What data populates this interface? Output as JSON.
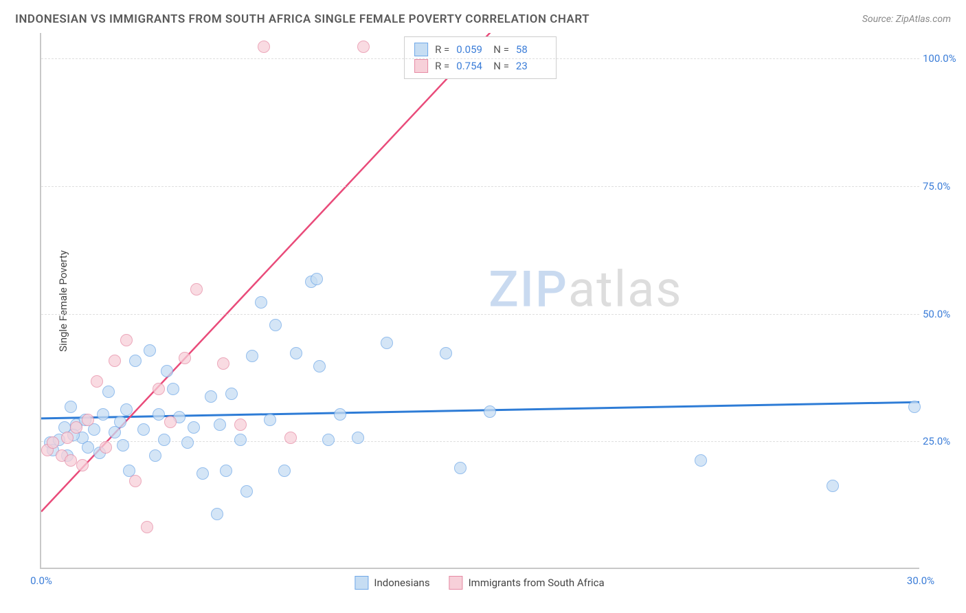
{
  "title": "INDONESIAN VS IMMIGRANTS FROM SOUTH AFRICA SINGLE FEMALE POVERTY CORRELATION CHART",
  "source_label": "Source:",
  "source_name": "ZipAtlas.com",
  "y_axis_title": "Single Female Poverty",
  "watermark": {
    "part1": "ZIP",
    "part2": "atlas"
  },
  "chart": {
    "type": "scatter",
    "xlim": [
      0,
      30
    ],
    "ylim": [
      0,
      105
    ],
    "x_ticks": [
      {
        "value": 0,
        "label": "0.0%"
      },
      {
        "value": 30,
        "label": "30.0%"
      }
    ],
    "y_ticks": [
      {
        "value": 25,
        "label": "25.0%"
      },
      {
        "value": 50,
        "label": "50.0%"
      },
      {
        "value": 75,
        "label": "75.0%"
      },
      {
        "value": 100,
        "label": "100.0%"
      }
    ],
    "grid_color": "#dedede",
    "axis_color": "#c8c8c8",
    "background_color": "#ffffff",
    "marker_radius": 9,
    "series": [
      {
        "name": "Indonesians",
        "fill": "#c6ddf3",
        "stroke": "#6fa8e8",
        "trend": {
          "y_at_x0": 29.3,
          "y_at_xmax": 32.5,
          "line_color": "#2e7cd6",
          "line_width": 3
        },
        "stats": {
          "R": "0.059",
          "N": "58"
        },
        "points": [
          [
            0.3,
            24.5
          ],
          [
            0.4,
            23.0
          ],
          [
            0.6,
            25.0
          ],
          [
            0.8,
            27.5
          ],
          [
            0.9,
            22.0
          ],
          [
            1.0,
            31.5
          ],
          [
            1.2,
            28.0
          ],
          [
            1.4,
            25.5
          ],
          [
            1.5,
            29.0
          ],
          [
            1.6,
            23.5
          ],
          [
            1.8,
            27.0
          ],
          [
            2.0,
            22.5
          ],
          [
            2.1,
            30.0
          ],
          [
            2.3,
            34.5
          ],
          [
            2.5,
            26.5
          ],
          [
            2.7,
            28.5
          ],
          [
            2.8,
            24.0
          ],
          [
            3.0,
            19.0
          ],
          [
            3.2,
            40.5
          ],
          [
            3.5,
            27.0
          ],
          [
            3.7,
            42.5
          ],
          [
            4.0,
            30.0
          ],
          [
            4.2,
            25.0
          ],
          [
            4.3,
            38.5
          ],
          [
            4.5,
            35.0
          ],
          [
            4.7,
            29.5
          ],
          [
            5.0,
            24.5
          ],
          [
            5.2,
            27.5
          ],
          [
            5.5,
            18.5
          ],
          [
            5.8,
            33.5
          ],
          [
            6.0,
            10.5
          ],
          [
            6.3,
            19.0
          ],
          [
            6.5,
            34.0
          ],
          [
            6.8,
            25.0
          ],
          [
            7.0,
            15.0
          ],
          [
            7.2,
            41.5
          ],
          [
            7.5,
            52.0
          ],
          [
            7.8,
            29.0
          ],
          [
            8.0,
            47.5
          ],
          [
            8.3,
            19.0
          ],
          [
            8.7,
            42.0
          ],
          [
            9.2,
            56.0
          ],
          [
            9.4,
            56.5
          ],
          [
            9.5,
            39.5
          ],
          [
            9.8,
            25.0
          ],
          [
            10.2,
            30.0
          ],
          [
            10.8,
            25.5
          ],
          [
            11.8,
            44.0
          ],
          [
            13.8,
            42.0
          ],
          [
            14.3,
            19.5
          ],
          [
            15.3,
            30.5
          ],
          [
            22.5,
            21.0
          ],
          [
            27.0,
            16.0
          ],
          [
            29.8,
            31.5
          ],
          [
            1.1,
            26.0
          ],
          [
            2.9,
            31.0
          ],
          [
            3.9,
            22.0
          ],
          [
            6.1,
            28.0
          ]
        ]
      },
      {
        "name": "Immigrants from South Africa",
        "fill": "#f7d0d9",
        "stroke": "#e68aa4",
        "trend": {
          "y_at_x0": 11.0,
          "y_at_xmax": 195.0,
          "line_color": "#e94b7a",
          "line_width": 2.5
        },
        "stats": {
          "R": "0.754",
          "N": "23"
        },
        "points": [
          [
            0.2,
            23.0
          ],
          [
            0.4,
            24.5
          ],
          [
            0.7,
            22.0
          ],
          [
            0.9,
            25.5
          ],
          [
            1.0,
            21.0
          ],
          [
            1.2,
            27.5
          ],
          [
            1.4,
            20.0
          ],
          [
            1.6,
            29.0
          ],
          [
            1.9,
            36.5
          ],
          [
            2.2,
            23.5
          ],
          [
            2.5,
            40.5
          ],
          [
            2.9,
            44.5
          ],
          [
            3.2,
            17.0
          ],
          [
            3.6,
            8.0
          ],
          [
            4.0,
            35.0
          ],
          [
            4.4,
            28.5
          ],
          [
            4.9,
            41.0
          ],
          [
            5.3,
            54.5
          ],
          [
            6.2,
            40.0
          ],
          [
            6.8,
            28.0
          ],
          [
            7.6,
            102.0
          ],
          [
            8.5,
            25.5
          ],
          [
            11.0,
            102.0
          ]
        ]
      }
    ],
    "legend_stats_labels": {
      "R": "R =",
      "N": "N ="
    }
  }
}
